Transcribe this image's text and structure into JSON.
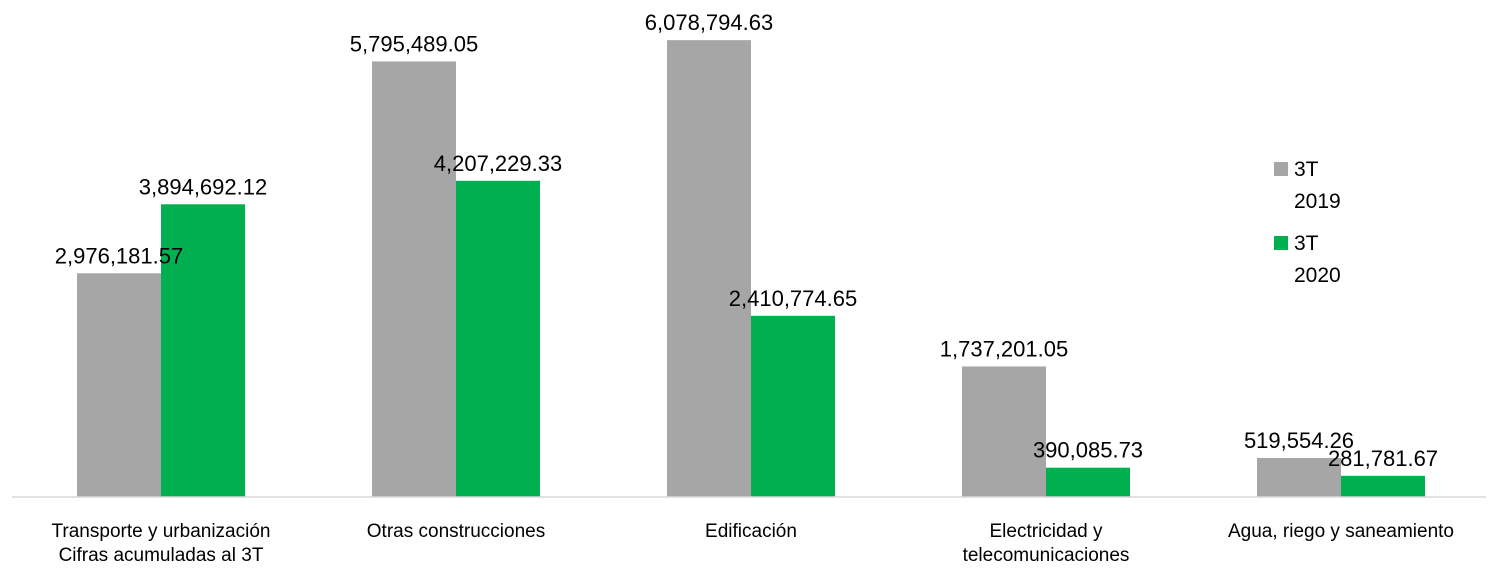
{
  "chart_data": {
    "type": "bar",
    "categories": [
      [
        "Transporte y urbanización",
        "Cifras acumuladas al 3T"
      ],
      [
        "Otras construcciones"
      ],
      [
        "Edificación"
      ],
      [
        "Electricidad y",
        "telecomunicaciones"
      ],
      [
        "Agua, riego y saneamiento"
      ]
    ],
    "series": [
      {
        "name": [
          "3T",
          "2019"
        ],
        "color": "#a6a6a6",
        "values": [
          2976181.57,
          5795489.05,
          6078794.63,
          1737201.05,
          519554.26
        ],
        "labels": [
          "2,976,181.57",
          "5,795,489.05",
          "6,078,794.63",
          "1,737,201.05",
          "519,554.26"
        ]
      },
      {
        "name": [
          "3T",
          "2020"
        ],
        "color": "#00b050",
        "values": [
          3894692.12,
          4207229.33,
          2410774.65,
          390085.73,
          281781.67
        ],
        "labels": [
          "3,894,692.12",
          "4,207,229.33",
          "2,410,774.65",
          "390,085.73",
          "281,781.67"
        ]
      }
    ],
    "ylim": [
      0,
      6333333
    ],
    "grid": false,
    "legend_position": "right"
  }
}
